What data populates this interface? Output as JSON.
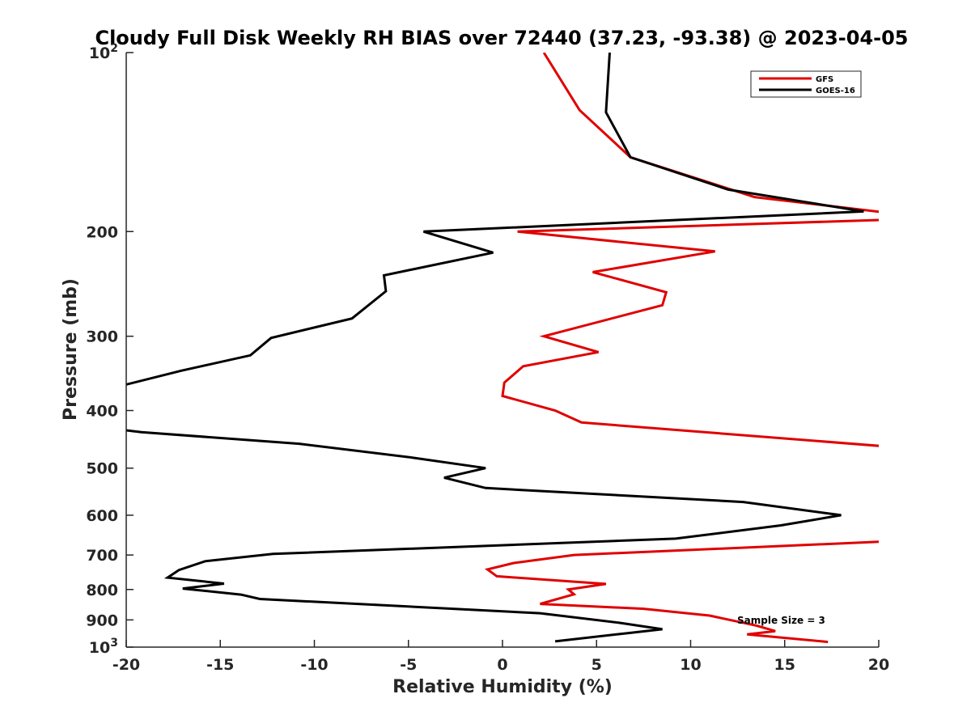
{
  "chart_data": {
    "type": "line",
    "title": "Cloudy Full Disk Weekly RH BIAS over 72440 (37.23, -93.38) @ 2023-04-05",
    "xlabel": "Relative Humidity (%)",
    "ylabel": "Pressure (mb)",
    "xlim": [
      -20,
      20
    ],
    "ylim": [
      100,
      1000
    ],
    "yscale": "log",
    "y_reversed": true,
    "grid": false,
    "legend_placement": "top-right",
    "x_ticks": [
      -20,
      -15,
      -10,
      -5,
      0,
      5,
      10,
      15,
      20
    ],
    "x_tick_labels": [
      "-20",
      "-15",
      "-10",
      "-5",
      "0",
      "5",
      "10",
      "15",
      "20"
    ],
    "y_ticks": [
      100,
      200,
      300,
      400,
      500,
      600,
      700,
      800,
      900,
      1000
    ],
    "y_tick_labels": [
      {
        "base": "10",
        "exp": "2"
      },
      {
        "base": "200"
      },
      {
        "base": "300"
      },
      {
        "base": "400"
      },
      {
        "base": "500"
      },
      {
        "base": "600"
      },
      {
        "base": "700"
      },
      {
        "base": "800"
      },
      {
        "base": "900"
      },
      {
        "base": "10",
        "exp": "3"
      }
    ],
    "annotation": "Sample Size = 3",
    "series": [
      {
        "name": "GFS",
        "color": "#e00000",
        "points": [
          [
            2.2,
            100
          ],
          [
            4.1,
            125
          ],
          [
            6.8,
            150
          ],
          [
            13.4,
            175
          ],
          [
            20.5,
            186
          ],
          [
            20.5,
            191
          ],
          [
            0.8,
            200
          ],
          [
            11.3,
            216
          ],
          [
            4.8,
            234
          ],
          [
            8.7,
            253
          ],
          [
            8.5,
            266
          ],
          [
            2.2,
            300
          ],
          [
            5.1,
            319
          ],
          [
            1.1,
            337
          ],
          [
            0.1,
            359
          ],
          [
            0.0,
            378
          ],
          [
            2.8,
            400
          ],
          [
            4.2,
            419
          ],
          [
            20.5,
            460
          ],
          [
            20.5,
            664
          ],
          [
            3.8,
            700
          ],
          [
            0.6,
            722
          ],
          [
            -0.8,
            740
          ],
          [
            -0.3,
            760
          ],
          [
            5.5,
            783
          ],
          [
            3.5,
            800
          ],
          [
            3.8,
            815
          ],
          [
            2.0,
            846
          ],
          [
            7.5,
            862
          ],
          [
            11.0,
            885
          ],
          [
            13.5,
            920
          ],
          [
            14.5,
            940
          ],
          [
            13.0,
            952
          ],
          [
            17.3,
            980
          ]
        ]
      },
      {
        "name": "GOES-16",
        "color": "#000000",
        "points": [
          [
            5.7,
            100
          ],
          [
            5.5,
            126
          ],
          [
            6.8,
            150
          ],
          [
            12.0,
            170
          ],
          [
            19.2,
            185
          ],
          [
            -4.2,
            200
          ],
          [
            -0.5,
            217
          ],
          [
            -6.3,
            237
          ],
          [
            -6.2,
            252
          ],
          [
            -8.0,
            280
          ],
          [
            -12.3,
            302
          ],
          [
            -13.4,
            323
          ],
          [
            -17.1,
            343
          ],
          [
            -20.5,
            365
          ],
          [
            -20.5,
            430
          ],
          [
            -19.2,
            435
          ],
          [
            -10.8,
            455
          ],
          [
            -4.8,
            480
          ],
          [
            -0.9,
            500
          ],
          [
            -3.1,
            519
          ],
          [
            -0.9,
            540
          ],
          [
            12.8,
            570
          ],
          [
            18.0,
            600
          ],
          [
            14.8,
            624
          ],
          [
            9.2,
            657
          ],
          [
            -12.2,
            697
          ],
          [
            -15.8,
            717
          ],
          [
            -17.2,
            742
          ],
          [
            -17.8,
            764
          ],
          [
            -14.8,
            782
          ],
          [
            -17.0,
            797
          ],
          [
            -13.9,
            816
          ],
          [
            -12.9,
            830
          ],
          [
            2.0,
            877
          ],
          [
            6.2,
            910
          ],
          [
            8.5,
            933
          ],
          [
            6.7,
            947
          ],
          [
            2.8,
            978
          ]
        ]
      }
    ]
  }
}
